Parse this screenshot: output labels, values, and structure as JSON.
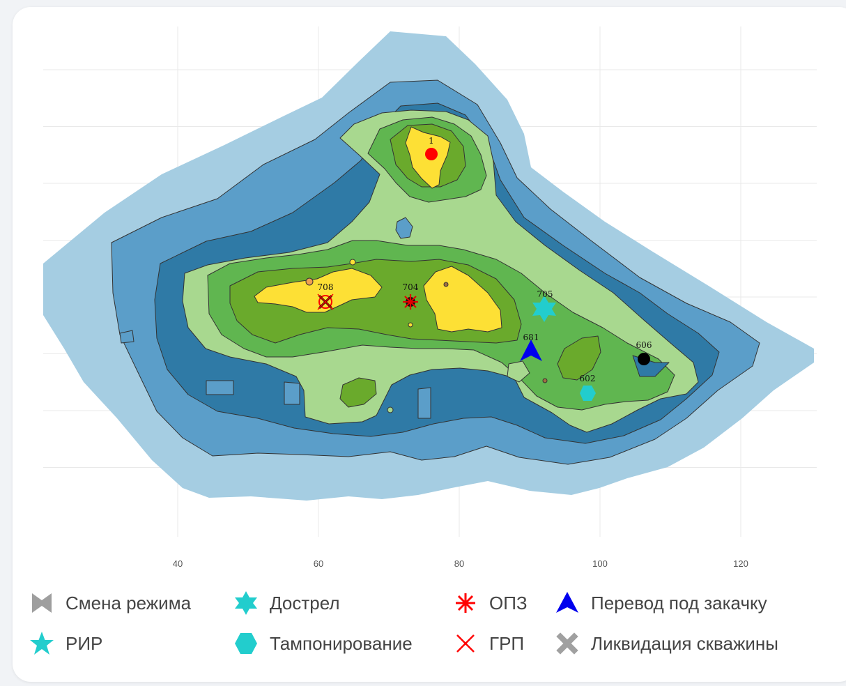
{
  "x_axis": {
    "ticks": [
      40,
      60,
      80,
      100,
      120
    ],
    "tick_labels": [
      "40",
      "60",
      "80",
      "100",
      "120"
    ]
  },
  "contour_colors": [
    "#a5cde2",
    "#5b9ec9",
    "#2f7aa6",
    "#a8d88f",
    "#60b650",
    "#6aaa2c",
    "#fde035"
  ],
  "wells": [
    {
      "label": "1",
      "x": 76,
      "marker": "circle",
      "color": "#ff0000"
    },
    {
      "label": "708",
      "x": 61,
      "marker": "grp-opz",
      "color": "#000000"
    },
    {
      "label": "704",
      "x": 73,
      "marker": "opz",
      "color": "#e00000"
    },
    {
      "label": "705",
      "x": 92,
      "marker": "star6",
      "color": "#22cdcd"
    },
    {
      "label": "681",
      "x": 90.5,
      "marker": "triangle",
      "color": "#0000ee"
    },
    {
      "label": "606",
      "x": 106,
      "marker": "circle",
      "color": "#000000"
    },
    {
      "label": "602",
      "x": 98,
      "marker": "hexagon",
      "color": "#22cdcd"
    }
  ],
  "legend": [
    {
      "label": "Смена режима",
      "icon": "bowtie-icon",
      "color": "#9e9e9e"
    },
    {
      "label": "Дострел",
      "icon": "star6-icon",
      "color": "#22cdcd"
    },
    {
      "label": "ОПЗ",
      "icon": "asterisk-icon",
      "color": "#ff0000"
    },
    {
      "label": "Перевод под закачку",
      "icon": "triangle-icon",
      "color": "#0000ee"
    },
    {
      "label": "РИР",
      "icon": "star5-icon",
      "color": "#22cdcd"
    },
    {
      "label": "Тампонирование",
      "icon": "hexagon-icon",
      "color": "#22cdcd"
    },
    {
      "label": "ГРП",
      "icon": "x-icon",
      "color": "#ff0000"
    },
    {
      "label": "Ликвидация скважины",
      "icon": "cross-icon",
      "color": "#a0a0a0"
    }
  ]
}
